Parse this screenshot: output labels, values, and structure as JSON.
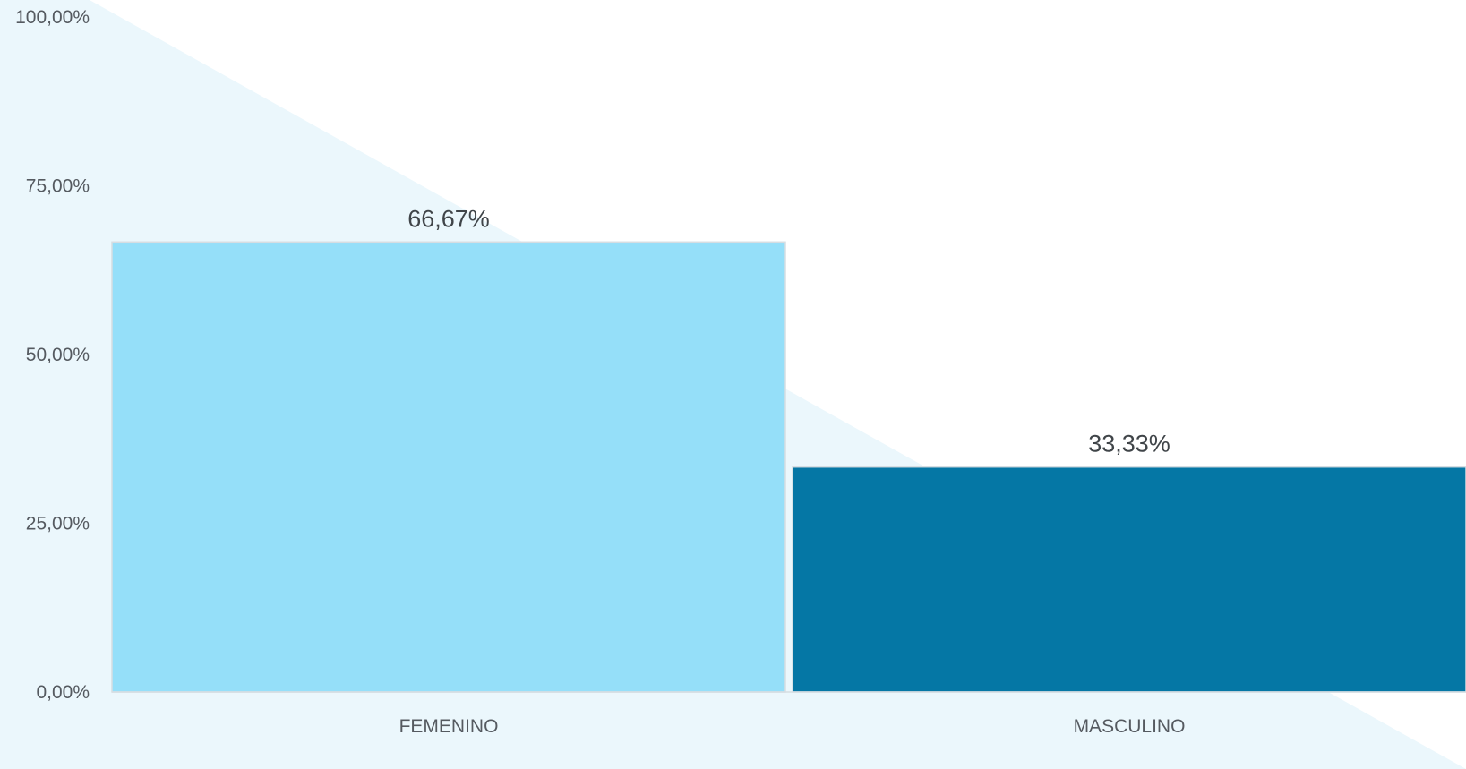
{
  "chart_data": {
    "type": "bar",
    "categories": [
      "FEMENINO",
      "MASCULINO"
    ],
    "values": [
      66.67,
      33.33
    ],
    "data_labels": [
      "66,67%",
      "33,33%"
    ],
    "y_ticks": [
      0,
      25,
      50,
      75,
      100
    ],
    "y_tick_labels": [
      "0,00%",
      "25,00%",
      "50,00%",
      "75,00%",
      "100,00%"
    ],
    "ylim": [
      0,
      100
    ],
    "grid": false,
    "legend": "none",
    "colors": {
      "bars": [
        "#95dff9",
        "#0577a5"
      ],
      "background_decoration": "#ebf7fc"
    }
  }
}
